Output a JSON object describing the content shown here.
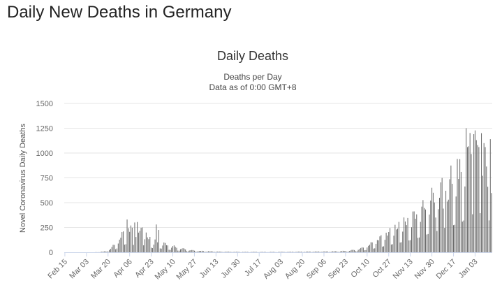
{
  "page": {
    "heading": "Daily New Deaths in Germany"
  },
  "colors": {
    "bar": "#666666",
    "grid": "#e6e6e6",
    "axis": "#ccd6eb",
    "text": "#333333",
    "tick_text": "#666666"
  },
  "chart_data": {
    "type": "bar",
    "title": "Daily Deaths",
    "subtitle": [
      "Deaths per Day",
      "Data as of 0:00 GMT+8"
    ],
    "ylabel": "Novel Coronavirus Daily Deaths",
    "xlabel": "",
    "ylim": [
      0,
      1500
    ],
    "yticks": [
      0,
      250,
      500,
      750,
      1000,
      1250,
      1500
    ],
    "grid": true,
    "start_date": "Feb 15",
    "day_count": 337,
    "x_tick_labels": [
      "Feb 15",
      "Mar 03",
      "Mar 20",
      "Apr 06",
      "Apr 23",
      "May 10",
      "May 27",
      "Jun 13",
      "Jun 30",
      "Jul 17",
      "Aug 03",
      "Aug 20",
      "Sep 06",
      "Sep 23",
      "Oct 10",
      "Oct 27",
      "Nov 13",
      "Nov 30",
      "Dec 17",
      "Jan 03"
    ],
    "x_tick_interval_days": 17,
    "series": [
      {
        "name": "Daily Deaths",
        "keyframes": [
          [
            0,
            0
          ],
          [
            22,
            0
          ],
          [
            27,
            2
          ],
          [
            32,
            10
          ],
          [
            36,
            40
          ],
          [
            40,
            90
          ],
          [
            44,
            160
          ],
          [
            47,
            220
          ],
          [
            50,
            250
          ],
          [
            54,
            210
          ],
          [
            58,
            230
          ],
          [
            62,
            200
          ],
          [
            66,
            150
          ],
          [
            70,
            110
          ],
          [
            74,
            120
          ],
          [
            78,
            90
          ],
          [
            82,
            70
          ],
          [
            86,
            60
          ],
          [
            90,
            45
          ],
          [
            94,
            35
          ],
          [
            98,
            25
          ],
          [
            102,
            18
          ],
          [
            110,
            12
          ],
          [
            120,
            7
          ],
          [
            130,
            5
          ],
          [
            140,
            4
          ],
          [
            150,
            4
          ],
          [
            160,
            3
          ],
          [
            170,
            4
          ],
          [
            180,
            5
          ],
          [
            195,
            7
          ],
          [
            205,
            8
          ],
          [
            215,
            10
          ],
          [
            222,
            15
          ],
          [
            228,
            25
          ],
          [
            234,
            45
          ],
          [
            240,
            80
          ],
          [
            246,
            130
          ],
          [
            252,
            180
          ],
          [
            258,
            230
          ],
          [
            264,
            280
          ],
          [
            270,
            330
          ],
          [
            276,
            390
          ],
          [
            282,
            460
          ],
          [
            288,
            560
          ],
          [
            294,
            620
          ],
          [
            300,
            720
          ],
          [
            306,
            780
          ],
          [
            312,
            850
          ],
          [
            316,
            980
          ],
          [
            320,
            1080
          ],
          [
            325,
            1150
          ],
          [
            330,
            1090
          ],
          [
            333,
            950
          ],
          [
            337,
            820
          ]
        ],
        "highlights": [
          [
            49,
            330
          ],
          [
            52,
            270
          ],
          [
            55,
            300
          ],
          [
            57,
            305
          ],
          [
            61,
            250
          ],
          [
            72,
            280
          ],
          [
            74,
            225
          ],
          [
            292,
            350
          ],
          [
            298,
            440
          ],
          [
            300,
            620
          ],
          [
            302,
            530
          ],
          [
            305,
            690
          ],
          [
            309,
            940
          ],
          [
            312,
            810
          ],
          [
            316,
            1250
          ],
          [
            317,
            1060
          ],
          [
            320,
            990
          ],
          [
            322,
            1190
          ],
          [
            324,
            1130
          ],
          [
            326,
            1060
          ],
          [
            328,
            1200
          ],
          [
            330,
            1100
          ],
          [
            331,
            1060
          ],
          [
            333,
            660
          ],
          [
            335,
            1140
          ]
        ]
      }
    ]
  }
}
